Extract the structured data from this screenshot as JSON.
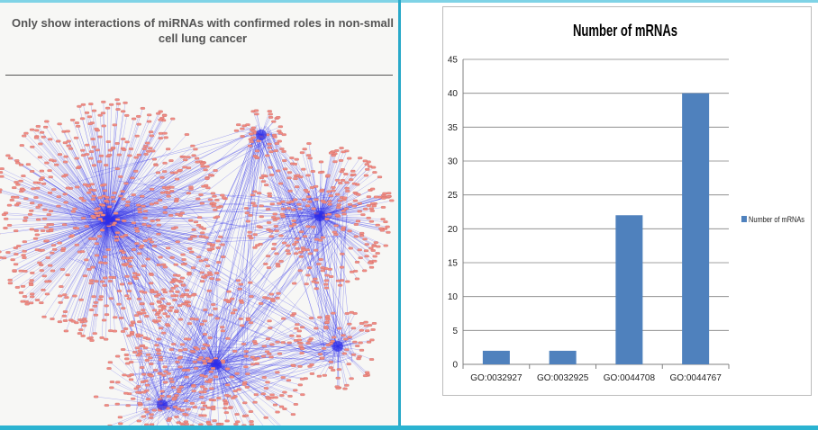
{
  "network": {
    "title": "Only show interactions of miRNAs with confirmed roles in non-small cell lung cancer",
    "node_color": "#f08c84",
    "edge_color": "#2e2ee8"
  },
  "chart_data": {
    "type": "bar",
    "title": "Number of mRNAs",
    "categories": [
      "GO:0032927",
      "GO:0032925",
      "GO:0044708",
      "GO:0044767"
    ],
    "series": [
      {
        "name": "Number of mRNAs",
        "values": [
          2,
          2,
          22,
          40
        ],
        "color": "#4f81bd"
      }
    ],
    "ylim": [
      0,
      45
    ],
    "yticks": [
      0,
      5,
      10,
      15,
      20,
      25,
      30,
      35,
      40,
      45
    ],
    "grid": true,
    "legend": "right"
  }
}
